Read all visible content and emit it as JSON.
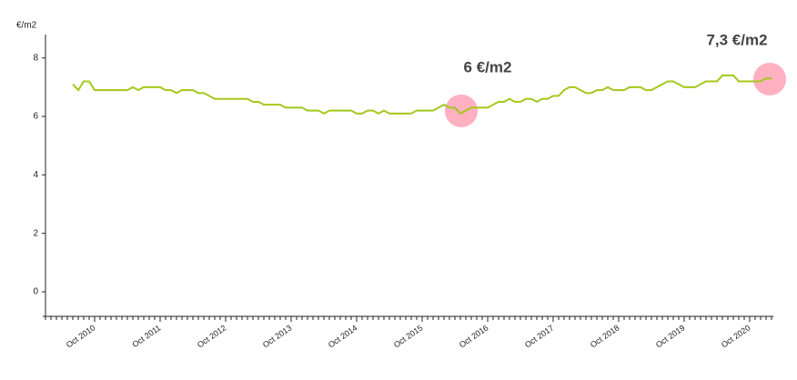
{
  "chart_data": {
    "type": "line",
    "y_label": "€/m2",
    "categories": [
      null,
      null,
      null,
      null,
      null,
      null,
      null,
      null,
      null,
      "Oct 2010",
      null,
      null,
      null,
      null,
      null,
      null,
      null,
      null,
      null,
      null,
      null,
      "Oct 2011",
      null,
      null,
      null,
      null,
      null,
      null,
      null,
      null,
      null,
      null,
      null,
      "Oct 2012",
      null,
      null,
      null,
      null,
      null,
      null,
      null,
      null,
      null,
      null,
      null,
      "Oct 2013",
      null,
      null,
      null,
      null,
      null,
      null,
      null,
      null,
      null,
      null,
      null,
      "Oct 2014",
      null,
      null,
      null,
      null,
      null,
      null,
      null,
      null,
      null,
      null,
      null,
      "Oct 2015",
      null,
      null,
      null,
      null,
      null,
      null,
      null,
      null,
      null,
      null,
      null,
      "Oct 2016",
      null,
      null,
      null,
      null,
      null,
      null,
      null,
      null,
      null,
      null,
      null,
      "Oct 2017",
      null,
      null,
      null,
      null,
      null,
      null,
      null,
      null,
      null,
      null,
      null,
      "Oct 2018",
      null,
      null,
      null,
      null,
      null,
      null,
      null,
      null,
      null,
      null,
      null,
      "Oct 2019",
      null,
      null,
      null,
      null,
      null,
      null,
      null,
      null,
      null,
      null,
      null,
      "Oct 2020",
      null,
      null,
      null,
      null
    ],
    "series": [
      {
        "color": "#a4c81c",
        "values": [
          null,
          null,
          null,
          null,
          null,
          7.1,
          6.9,
          7.2,
          7.2,
          6.9,
          6.9,
          6.9,
          6.9,
          6.9,
          6.9,
          6.9,
          7.0,
          6.9,
          7.0,
          7.0,
          7.0,
          7.0,
          6.9,
          6.9,
          6.8,
          6.9,
          6.9,
          6.9,
          6.8,
          6.8,
          6.7,
          6.6,
          6.6,
          6.6,
          6.6,
          6.6,
          6.6,
          6.6,
          6.5,
          6.5,
          6.4,
          6.4,
          6.4,
          6.4,
          6.3,
          6.3,
          6.3,
          6.3,
          6.2,
          6.2,
          6.2,
          6.1,
          6.2,
          6.2,
          6.2,
          6.2,
          6.2,
          6.1,
          6.1,
          6.2,
          6.2,
          6.1,
          6.2,
          6.1,
          6.1,
          6.1,
          6.1,
          6.1,
          6.2,
          6.2,
          6.2,
          6.2,
          6.3,
          6.4,
          6.3,
          6.3,
          6.1,
          6.2,
          6.3,
          6.3,
          6.3,
          6.3,
          6.4,
          6.5,
          6.5,
          6.6,
          6.5,
          6.5,
          6.6,
          6.6,
          6.5,
          6.6,
          6.6,
          6.7,
          6.7,
          6.9,
          7.0,
          7.0,
          6.9,
          6.8,
          6.8,
          6.9,
          6.9,
          7.0,
          6.9,
          6.9,
          6.9,
          7.0,
          7.0,
          7.0,
          6.9,
          6.9,
          7.0,
          7.1,
          7.2,
          7.2,
          7.1,
          7.0,
          7.0,
          7.0,
          7.1,
          7.2,
          7.2,
          7.2,
          7.4,
          7.4,
          7.4,
          7.2,
          7.2,
          7.2,
          7.2,
          7.2,
          7.3,
          7.3
        ]
      }
    ],
    "ylim": [
      -0.84,
      8.8
    ],
    "yticks": [
      0,
      2,
      4,
      6,
      8
    ],
    "grid": false,
    "annotations": [
      "6 €/m2",
      "7,3 €/m2"
    ]
  }
}
